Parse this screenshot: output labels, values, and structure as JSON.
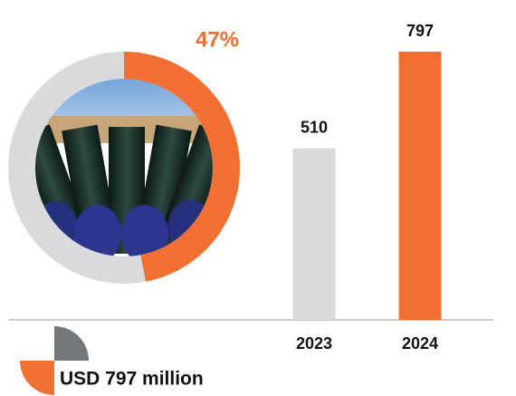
{
  "chart_data": [
    {
      "type": "donut",
      "values": [
        47
      ],
      "value_labels": [
        "47%"
      ],
      "color": "#f26f33",
      "track_color": "#d9dadb"
    },
    {
      "type": "bar",
      "categories": [
        "2023",
        "2024"
      ],
      "values": [
        510,
        797
      ],
      "colors": [
        "#d9dadb",
        "#f26f33"
      ],
      "annotation": "USD 797 million"
    }
  ]
}
